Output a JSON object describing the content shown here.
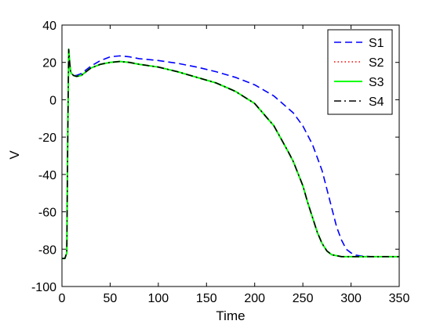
{
  "chart_data": {
    "type": "line",
    "title": "",
    "xlabel": "Time",
    "ylabel": "V",
    "xlim": [
      0,
      350
    ],
    "ylim": [
      -100,
      40
    ],
    "xticks": [
      0,
      50,
      100,
      150,
      200,
      250,
      300,
      350
    ],
    "yticks": [
      -100,
      -80,
      -60,
      -40,
      -20,
      0,
      20,
      40
    ],
    "xtick_labels": [
      "0",
      "50",
      "100",
      "150",
      "200",
      "250",
      "300",
      "350"
    ],
    "ytick_labels": [
      "-100",
      "-80",
      "-60",
      "-40",
      "-20",
      "0",
      "20",
      "40"
    ],
    "grid": false,
    "legend_position": "top-right",
    "series": [
      {
        "name": "S1",
        "color": "#0000ff",
        "dash": "dashed",
        "x": [
          0,
          3,
          5,
          6,
          7,
          8,
          9,
          10,
          12,
          15,
          20,
          25,
          30,
          40,
          50,
          60,
          70,
          80,
          100,
          120,
          140,
          160,
          180,
          200,
          220,
          240,
          250,
          260,
          270,
          280,
          285,
          290,
          295,
          300,
          305,
          310,
          320,
          330,
          340,
          350
        ],
        "y": [
          -85,
          -85,
          -82,
          -20,
          27,
          20,
          15,
          14,
          13,
          13,
          14,
          16,
          18,
          21,
          23,
          23.5,
          23,
          22,
          21,
          19.5,
          17.5,
          15,
          12,
          8,
          2,
          -7,
          -14,
          -24,
          -38,
          -58,
          -68,
          -75,
          -80,
          -82,
          -83.2,
          -83.6,
          -84,
          -84,
          -84,
          -84
        ]
      },
      {
        "name": "S2",
        "color": "#ff0000",
        "dash": "dotted",
        "x": [
          0,
          3,
          5,
          6,
          7,
          8,
          9,
          10,
          12,
          15,
          20,
          25,
          30,
          40,
          50,
          60,
          70,
          80,
          100,
          120,
          140,
          160,
          180,
          200,
          220,
          235,
          240,
          250,
          255,
          260,
          265,
          270,
          275,
          280,
          285,
          290,
          300,
          310,
          320,
          330,
          340,
          350
        ],
        "y": [
          -85,
          -85,
          -82,
          -20,
          27,
          20,
          15,
          14,
          13,
          12.5,
          13,
          15,
          17,
          19,
          20,
          20.5,
          20,
          19,
          17.5,
          15,
          12,
          9,
          4.5,
          -2,
          -14,
          -28,
          -33,
          -46,
          -55,
          -63,
          -71,
          -77,
          -81,
          -83,
          -83.5,
          -84,
          -84,
          -84,
          -84,
          -84,
          -84,
          -84
        ]
      },
      {
        "name": "S3",
        "color": "#00ff00",
        "dash": "solid",
        "x": [
          0,
          3,
          5,
          6,
          7,
          8,
          9,
          10,
          12,
          15,
          20,
          25,
          30,
          40,
          50,
          60,
          70,
          80,
          100,
          120,
          140,
          160,
          180,
          200,
          220,
          235,
          240,
          250,
          255,
          260,
          265,
          270,
          275,
          280,
          285,
          290,
          300,
          310,
          320,
          330,
          340,
          350
        ],
        "y": [
          -85,
          -85,
          -82,
          -20,
          27,
          20,
          15,
          14,
          13,
          12.5,
          13,
          15,
          17,
          19,
          20,
          20.5,
          20,
          19,
          17.5,
          15,
          12,
          9,
          4.5,
          -2,
          -14,
          -28,
          -33,
          -46,
          -55,
          -63,
          -71,
          -77,
          -81,
          -83,
          -83.5,
          -84,
          -84,
          -84,
          -84,
          -84,
          -84,
          -84
        ]
      },
      {
        "name": "S4",
        "color": "#000000",
        "dash": "dashdot",
        "x": [
          0,
          3,
          5,
          6,
          7,
          8,
          9,
          10,
          12,
          15,
          20,
          25,
          30,
          40,
          50,
          60,
          70,
          80,
          100,
          120,
          140,
          160,
          180,
          200,
          220,
          235,
          240,
          250,
          255,
          260,
          265,
          270,
          275,
          280,
          285,
          290,
          300,
          310,
          320,
          330,
          340,
          350
        ],
        "y": [
          -85,
          -85,
          -82,
          -20,
          27,
          20,
          15,
          14,
          13,
          12.5,
          13,
          15,
          17,
          19,
          20,
          20.5,
          20,
          19,
          17.5,
          15,
          12,
          9,
          4.5,
          -2,
          -14,
          -28,
          -33,
          -46,
          -55,
          -63,
          -71,
          -77,
          -81,
          -83,
          -83.5,
          -84,
          -84,
          -84,
          -84,
          -84,
          -84,
          -84
        ]
      }
    ]
  }
}
